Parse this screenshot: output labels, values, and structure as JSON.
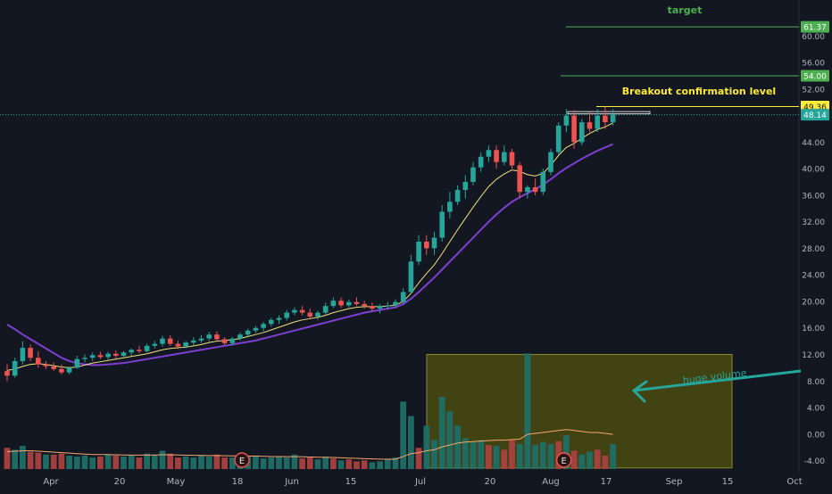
{
  "chart_data": {
    "type": "candlestick",
    "title": "",
    "x_axis_labels": [
      "Apr",
      "20",
      "May",
      "18",
      "Jun",
      "15",
      "Jul",
      "20",
      "Aug",
      "17",
      "Sep",
      "15",
      "Oct"
    ],
    "y_axis": {
      "min": -5,
      "max": 63,
      "ticks": [
        "-4.00",
        "0.00",
        "4.00",
        "8.00",
        "12.00",
        "16.00",
        "20.00",
        "24.00",
        "28.00",
        "32.00",
        "36.00",
        "40.00",
        "44.00",
        "52.00",
        "56.00",
        "60.00"
      ]
    },
    "price_tags": [
      {
        "value": 61.37,
        "label": "61.37",
        "color": "#4caf50"
      },
      {
        "value": 54.0,
        "label": "54.00",
        "color": "#4caf50"
      },
      {
        "value": 49.36,
        "label": "49.36",
        "color": "#ffeb3b"
      },
      {
        "value": 48.14,
        "label": "48.14",
        "color": "#26a69a"
      }
    ],
    "annotations": {
      "target": "target",
      "breakout": "Breakout confirmation level",
      "huge_volume": "huge volume",
      "earnings_marker": "E"
    },
    "candles": [
      {
        "o": 9.5,
        "h": 10.5,
        "l": 8.0,
        "c": 8.8
      },
      {
        "o": 8.8,
        "h": 11.5,
        "l": 8.5,
        "c": 11.0
      },
      {
        "o": 11.0,
        "h": 14.0,
        "l": 10.5,
        "c": 13.0
      },
      {
        "o": 13.0,
        "h": 13.5,
        "l": 11.0,
        "c": 11.5
      },
      {
        "o": 11.5,
        "h": 12.5,
        "l": 10.0,
        "c": 10.5
      },
      {
        "o": 10.5,
        "h": 11.0,
        "l": 9.8,
        "c": 10.2
      },
      {
        "o": 10.2,
        "h": 10.8,
        "l": 9.5,
        "c": 9.8
      },
      {
        "o": 9.8,
        "h": 10.5,
        "l": 9.0,
        "c": 9.3
      },
      {
        "o": 9.3,
        "h": 10.2,
        "l": 9.0,
        "c": 10.0
      },
      {
        "o": 10.0,
        "h": 11.8,
        "l": 9.8,
        "c": 11.3
      },
      {
        "o": 11.3,
        "h": 12.0,
        "l": 10.8,
        "c": 11.5
      },
      {
        "o": 11.5,
        "h": 12.3,
        "l": 11.0,
        "c": 11.9
      },
      {
        "o": 11.9,
        "h": 12.4,
        "l": 11.3,
        "c": 11.6
      },
      {
        "o": 11.6,
        "h": 12.4,
        "l": 11.2,
        "c": 12.1
      },
      {
        "o": 12.1,
        "h": 12.6,
        "l": 11.4,
        "c": 11.8
      },
      {
        "o": 11.8,
        "h": 12.5,
        "l": 11.5,
        "c": 12.3
      },
      {
        "o": 12.3,
        "h": 12.9,
        "l": 11.8,
        "c": 12.7
      },
      {
        "o": 12.7,
        "h": 13.3,
        "l": 12.2,
        "c": 12.5
      },
      {
        "o": 12.5,
        "h": 13.6,
        "l": 12.3,
        "c": 13.3
      },
      {
        "o": 13.3,
        "h": 14.0,
        "l": 12.9,
        "c": 13.6
      },
      {
        "o": 13.6,
        "h": 14.8,
        "l": 13.2,
        "c": 14.4
      },
      {
        "o": 14.4,
        "h": 14.9,
        "l": 13.3,
        "c": 13.6
      },
      {
        "o": 13.6,
        "h": 14.1,
        "l": 12.8,
        "c": 13.2
      },
      {
        "o": 13.2,
        "h": 14.0,
        "l": 12.9,
        "c": 13.8
      },
      {
        "o": 13.8,
        "h": 14.6,
        "l": 13.4,
        "c": 14.1
      },
      {
        "o": 14.1,
        "h": 14.9,
        "l": 13.7,
        "c": 14.4
      },
      {
        "o": 14.4,
        "h": 15.4,
        "l": 14.0,
        "c": 15.0
      },
      {
        "o": 15.0,
        "h": 15.5,
        "l": 14.0,
        "c": 14.3
      },
      {
        "o": 14.3,
        "h": 14.6,
        "l": 13.4,
        "c": 13.7
      },
      {
        "o": 13.7,
        "h": 14.6,
        "l": 13.3,
        "c": 14.4
      },
      {
        "o": 14.4,
        "h": 15.3,
        "l": 14.1,
        "c": 15.0
      },
      {
        "o": 15.0,
        "h": 15.9,
        "l": 14.7,
        "c": 15.6
      },
      {
        "o": 15.6,
        "h": 16.3,
        "l": 15.2,
        "c": 16.0
      },
      {
        "o": 16.0,
        "h": 16.9,
        "l": 15.5,
        "c": 16.6
      },
      {
        "o": 16.6,
        "h": 17.5,
        "l": 16.2,
        "c": 17.2
      },
      {
        "o": 17.2,
        "h": 17.9,
        "l": 16.6,
        "c": 17.5
      },
      {
        "o": 17.5,
        "h": 18.7,
        "l": 17.1,
        "c": 18.3
      },
      {
        "o": 18.3,
        "h": 19.1,
        "l": 17.9,
        "c": 18.7
      },
      {
        "o": 18.7,
        "h": 19.3,
        "l": 17.9,
        "c": 18.3
      },
      {
        "o": 18.3,
        "h": 18.9,
        "l": 17.4,
        "c": 17.7
      },
      {
        "o": 17.7,
        "h": 18.6,
        "l": 17.2,
        "c": 18.3
      },
      {
        "o": 18.3,
        "h": 19.8,
        "l": 18.0,
        "c": 19.3
      },
      {
        "o": 19.3,
        "h": 20.6,
        "l": 19.0,
        "c": 20.1
      },
      {
        "o": 20.1,
        "h": 20.6,
        "l": 19.0,
        "c": 19.4
      },
      {
        "o": 19.4,
        "h": 20.3,
        "l": 19.1,
        "c": 19.9
      },
      {
        "o": 19.9,
        "h": 20.6,
        "l": 19.3,
        "c": 19.6
      },
      {
        "o": 19.6,
        "h": 20.1,
        "l": 18.9,
        "c": 19.3
      },
      {
        "o": 19.3,
        "h": 19.8,
        "l": 18.5,
        "c": 18.9
      },
      {
        "o": 18.9,
        "h": 19.6,
        "l": 18.2,
        "c": 19.3
      },
      {
        "o": 19.3,
        "h": 19.9,
        "l": 18.8,
        "c": 19.4
      },
      {
        "o": 19.4,
        "h": 20.3,
        "l": 19.0,
        "c": 19.9
      },
      {
        "o": 19.9,
        "h": 22.0,
        "l": 19.6,
        "c": 21.4
      },
      {
        "o": 21.4,
        "h": 27.0,
        "l": 21.2,
        "c": 26.0
      },
      {
        "o": 26.0,
        "h": 30.0,
        "l": 25.5,
        "c": 29.0
      },
      {
        "o": 29.0,
        "h": 30.0,
        "l": 27.0,
        "c": 28.0
      },
      {
        "o": 28.0,
        "h": 30.5,
        "l": 27.0,
        "c": 29.6
      },
      {
        "o": 29.6,
        "h": 34.5,
        "l": 29.0,
        "c": 33.5
      },
      {
        "o": 33.5,
        "h": 36.5,
        "l": 32.5,
        "c": 35.0
      },
      {
        "o": 35.0,
        "h": 37.5,
        "l": 34.5,
        "c": 36.8
      },
      {
        "o": 36.8,
        "h": 39.0,
        "l": 35.5,
        "c": 38.0
      },
      {
        "o": 38.0,
        "h": 41.0,
        "l": 37.5,
        "c": 40.2
      },
      {
        "o": 40.2,
        "h": 42.5,
        "l": 39.5,
        "c": 41.8
      },
      {
        "o": 41.8,
        "h": 43.5,
        "l": 41.0,
        "c": 42.8
      },
      {
        "o": 42.8,
        "h": 43.5,
        "l": 40.0,
        "c": 41.0
      },
      {
        "o": 41.0,
        "h": 43.5,
        "l": 40.5,
        "c": 42.5
      },
      {
        "o": 42.5,
        "h": 43.0,
        "l": 40.0,
        "c": 40.5
      },
      {
        "o": 40.5,
        "h": 41.0,
        "l": 35.5,
        "c": 36.5
      },
      {
        "o": 36.5,
        "h": 37.5,
        "l": 35.5,
        "c": 37.2
      },
      {
        "o": 37.2,
        "h": 38.5,
        "l": 36.0,
        "c": 36.5
      },
      {
        "o": 36.5,
        "h": 40.0,
        "l": 36.0,
        "c": 39.5
      },
      {
        "o": 39.5,
        "h": 43.0,
        "l": 39.0,
        "c": 42.5
      },
      {
        "o": 42.5,
        "h": 47.0,
        "l": 42.0,
        "c": 46.5
      },
      {
        "o": 46.5,
        "h": 49.0,
        "l": 45.5,
        "c": 48.0
      },
      {
        "o": 48.0,
        "h": 48.8,
        "l": 43.0,
        "c": 44.0
      },
      {
        "o": 44.0,
        "h": 47.5,
        "l": 43.5,
        "c": 47.0
      },
      {
        "o": 47.0,
        "h": 48.5,
        "l": 45.5,
        "c": 46.0
      },
      {
        "o": 46.0,
        "h": 49.0,
        "l": 45.5,
        "c": 48.0
      },
      {
        "o": 48.0,
        "h": 49.36,
        "l": 46.0,
        "c": 47.0
      },
      {
        "o": 47.0,
        "h": 49.0,
        "l": 46.5,
        "c": 48.14
      }
    ],
    "volume": [
      2.2,
      2.0,
      2.4,
      1.8,
      1.7,
      1.5,
      1.5,
      1.6,
      1.4,
      1.3,
      1.4,
      1.2,
      1.3,
      1.5,
      1.4,
      1.3,
      1.4,
      1.2,
      1.6,
      1.5,
      1.9,
      1.6,
      1.2,
      1.3,
      1.2,
      1.4,
      1.3,
      1.5,
      1.2,
      1.2,
      1.4,
      1.3,
      1.4,
      1.1,
      1.2,
      1.3,
      1.2,
      1.5,
      1.1,
      1.2,
      1.0,
      1.3,
      1.1,
      0.9,
      1.0,
      0.8,
      0.9,
      0.7,
      0.8,
      1.0,
      1.2,
      7.0,
      5.5,
      2.2,
      4.5,
      3.0,
      7.5,
      6.0,
      4.5,
      3.2,
      2.8,
      3.0,
      2.5,
      2.4,
      2.0,
      3.0,
      2.6,
      12.0,
      2.5,
      2.8,
      2.6,
      2.9,
      3.5,
      1.9,
      1.5,
      1.8,
      2.0,
      1.4,
      2.6
    ],
    "volume_up": [
      false,
      true,
      true,
      false,
      false,
      true,
      false,
      false,
      true,
      true,
      true,
      true,
      false,
      true,
      false,
      true,
      true,
      false,
      true,
      true,
      true,
      false,
      false,
      true,
      true,
      true,
      true,
      false,
      false,
      true,
      true,
      true,
      true,
      true,
      true,
      true,
      true,
      true,
      false,
      false,
      true,
      true,
      false,
      true,
      false,
      false,
      false,
      true,
      true,
      true,
      true,
      true,
      true,
      false,
      true,
      true,
      true,
      true,
      true,
      true,
      true,
      true,
      false,
      true,
      false,
      false,
      true,
      true,
      true,
      true,
      true,
      false,
      true,
      false,
      true,
      true,
      false,
      false,
      true
    ],
    "ma_fast": [
      9.6,
      9.8,
      10.2,
      10.5,
      10.6,
      10.5,
      10.3,
      10.1,
      10.0,
      10.1,
      10.4,
      10.7,
      10.9,
      11.1,
      11.3,
      11.5,
      11.7,
      11.9,
      12.1,
      12.4,
      12.7,
      12.9,
      13.0,
      13.1,
      13.3,
      13.5,
      13.8,
      14.0,
      14.1,
      14.2,
      14.4,
      14.7,
      15.0,
      15.3,
      15.7,
      16.1,
      16.5,
      16.9,
      17.2,
      17.4,
      17.6,
      17.9,
      18.3,
      18.6,
      18.9,
      19.1,
      19.2,
      19.2,
      19.2,
      19.3,
      19.4,
      20.0,
      21.2,
      22.8,
      24.2,
      25.5,
      27.2,
      29.0,
      30.8,
      32.5,
      34.2,
      35.8,
      37.3,
      38.4,
      39.2,
      39.8,
      39.6,
      39.1,
      38.9,
      39.3,
      40.5,
      42.0,
      43.2,
      43.8,
      44.6,
      45.3,
      45.9,
      46.3,
      46.9
    ],
    "ma_slow": [
      16.5,
      15.8,
      15.0,
      14.3,
      13.6,
      12.9,
      12.2,
      11.5,
      11.0,
      10.7,
      10.5,
      10.4,
      10.4,
      10.5,
      10.6,
      10.7,
      10.9,
      11.1,
      11.3,
      11.5,
      11.7,
      11.9,
      12.1,
      12.3,
      12.5,
      12.7,
      12.9,
      13.1,
      13.3,
      13.5,
      13.7,
      13.9,
      14.1,
      14.4,
      14.7,
      15.0,
      15.3,
      15.6,
      15.9,
      16.2,
      16.5,
      16.8,
      17.1,
      17.4,
      17.7,
      18.0,
      18.3,
      18.5,
      18.7,
      18.9,
      19.1,
      19.6,
      20.4,
      21.4,
      22.5,
      23.6,
      24.8,
      26.0,
      27.2,
      28.4,
      29.6,
      30.8,
      32.0,
      33.1,
      34.1,
      35.0,
      35.7,
      36.3,
      36.9,
      37.6,
      38.4,
      39.3,
      40.1,
      40.8,
      41.5,
      42.1,
      42.7,
      43.2,
      43.7
    ],
    "volume_ma": [
      1.8,
      1.85,
      1.9,
      1.9,
      1.85,
      1.8,
      1.75,
      1.7,
      1.65,
      1.6,
      1.55,
      1.5,
      1.5,
      1.5,
      1.48,
      1.46,
      1.45,
      1.45,
      1.45,
      1.46,
      1.48,
      1.48,
      1.46,
      1.44,
      1.42,
      1.41,
      1.4,
      1.4,
      1.38,
      1.36,
      1.35,
      1.35,
      1.34,
      1.32,
      1.3,
      1.3,
      1.29,
      1.28,
      1.27,
      1.25,
      1.23,
      1.22,
      1.2,
      1.17,
      1.14,
      1.11,
      1.08,
      1.05,
      1.03,
      1.02,
      1.02,
      1.3,
      1.6,
      1.7,
      1.9,
      2.0,
      2.3,
      2.5,
      2.7,
      2.8,
      2.85,
      2.9,
      2.95,
      3.0,
      3.0,
      3.05,
      3.1,
      3.6,
      3.7,
      3.8,
      3.9,
      4.0,
      4.1,
      4.0,
      3.9,
      3.8,
      3.8,
      3.7,
      3.6
    ],
    "earnings_candle_index": [
      30,
      71
    ],
    "colors": {
      "background": "#131722",
      "up": "#26a69a",
      "down": "#ef5350",
      "ma_fast": "#f0e07a",
      "ma_slow": "#7e3fd1",
      "volume_ma": "#f7a56a",
      "target": "#4caf50",
      "breakout": "#ffeb3b",
      "box_fill": "rgba(128,128,0,0.42)",
      "arrow": "#26a69a",
      "axis_text": "#b2b5be"
    }
  }
}
